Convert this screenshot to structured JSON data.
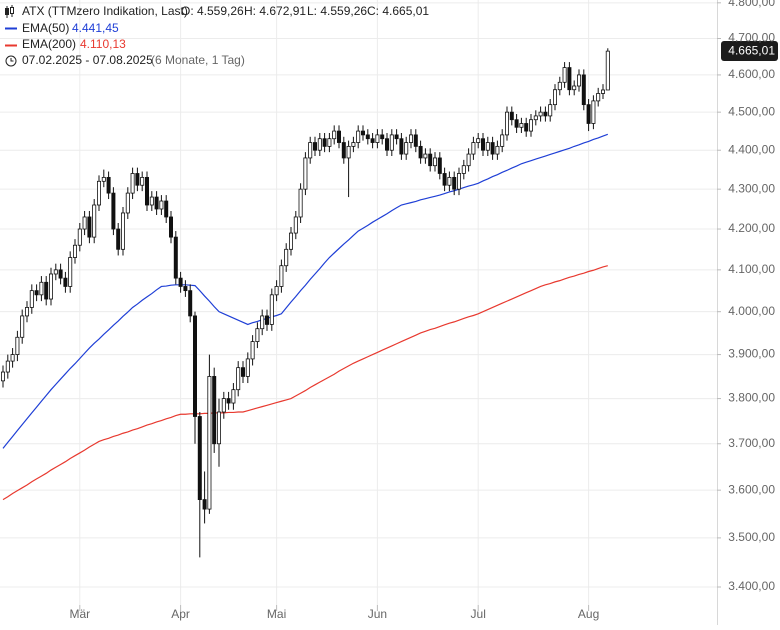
{
  "header": {
    "instrument": "ATX (TTMzero Indikation, Last)",
    "open": "O: 4.559,26",
    "high": "H: 4.672,91",
    "low": "L: 4.559,26",
    "close": "C: 4.665,01",
    "range": "07.02.2025 - 07.08.2025",
    "period": "(6 Monate, 1 Tag)"
  },
  "chart_data": {
    "type": "candlestick",
    "log_scale": true,
    "grid": true,
    "last_price_label": "4.665,01",
    "ylim": [
      3374,
      4808
    ],
    "yticks": [
      {
        "value": 4800,
        "label": "4.800,00"
      },
      {
        "value": 4700,
        "label": "4.700,00"
      },
      {
        "value": 4600,
        "label": "4.600,00"
      },
      {
        "value": 4500,
        "label": "4.500,00"
      },
      {
        "value": 4400,
        "label": "4.400,00"
      },
      {
        "value": 4300,
        "label": "4.300,00"
      },
      {
        "value": 4200,
        "label": "4.200,00"
      },
      {
        "value": 4100,
        "label": "4.100,00"
      },
      {
        "value": 4000,
        "label": "4.000,00"
      },
      {
        "value": 3900,
        "label": "3.900,00"
      },
      {
        "value": 3800,
        "label": "3.800,00"
      },
      {
        "value": 3700,
        "label": "3.700,00"
      },
      {
        "value": 3600,
        "label": "3.600,00"
      },
      {
        "value": 3500,
        "label": "3.500,00"
      },
      {
        "value": 3400,
        "label": "3.400,00"
      }
    ],
    "xticks": [
      {
        "value": 16,
        "label": "Mär"
      },
      {
        "value": 37,
        "label": "Apr"
      },
      {
        "value": 57,
        "label": "Mai"
      },
      {
        "value": 78,
        "label": "Jun"
      },
      {
        "value": 99,
        "label": "Jul"
      },
      {
        "value": 122,
        "label": "Aug"
      }
    ],
    "open": [
      3840,
      3860,
      3885,
      3900,
      3940,
      3990,
      4010,
      4050,
      4040,
      4070,
      4030,
      4090,
      4100,
      4080,
      4060,
      4130,
      4160,
      4200,
      4230,
      4180,
      4260,
      4320,
      4330,
      4290,
      4200,
      4150,
      4240,
      4290,
      4340,
      4310,
      4330,
      4260,
      4280,
      4250,
      4270,
      4230,
      4180,
      4080,
      4060,
      4050,
      3990,
      3760,
      3580,
      3560,
      3850,
      3700,
      3770,
      3800,
      3790,
      3820,
      3870,
      3850,
      3890,
      3930,
      3960,
      3990,
      3970,
      4040,
      4060,
      4110,
      4150,
      4190,
      4230,
      4300,
      4380,
      4420,
      4400,
      4430,
      4410,
      4430,
      4450,
      4420,
      4380,
      4410,
      4420,
      4450,
      4440,
      4430,
      4420,
      4440,
      4430,
      4400,
      4440,
      4430,
      4390,
      4420,
      4440,
      4410,
      4380,
      4390,
      4360,
      4380,
      4340,
      4310,
      4330,
      4300,
      4340,
      4360,
      4390,
      4420,
      4430,
      4400,
      4420,
      4390,
      4410,
      4440,
      4500,
      4480,
      4460,
      4470,
      4450,
      4480,
      4490,
      4500,
      4490,
      4520,
      4560,
      4580,
      4620,
      4560,
      4570,
      4600,
      4520,
      4470,
      4530,
      4550,
      4559.26
    ],
    "high": [
      3875,
      3900,
      3915,
      3955,
      4005,
      4025,
      4065,
      4065,
      4085,
      4085,
      4105,
      4115,
      4115,
      4095,
      4145,
      4175,
      4215,
      4245,
      4245,
      4275,
      4335,
      4350,
      4345,
      4305,
      4215,
      4255,
      4305,
      4355,
      4355,
      4345,
      4345,
      4295,
      4295,
      4285,
      4285,
      4245,
      4195,
      4095,
      4075,
      4065,
      4000,
      3770,
      3640,
      3900,
      3870,
      3800,
      3815,
      3815,
      3835,
      3885,
      3885,
      3905,
      3945,
      3975,
      4005,
      4005,
      4055,
      4075,
      4125,
      4165,
      4205,
      4245,
      4315,
      4395,
      4435,
      4435,
      4445,
      4445,
      4445,
      4465,
      4465,
      4435,
      4425,
      4435,
      4465,
      4465,
      4455,
      4445,
      4455,
      4455,
      4445,
      4455,
      4455,
      4445,
      4435,
      4455,
      4455,
      4425,
      4405,
      4405,
      4395,
      4395,
      4355,
      4345,
      4345,
      4355,
      4375,
      4405,
      4435,
      4445,
      4445,
      4435,
      4435,
      4425,
      4455,
      4515,
      4515,
      4495,
      4485,
      4485,
      4495,
      4505,
      4515,
      4515,
      4535,
      4575,
      4595,
      4635,
      4635,
      4585,
      4615,
      4615,
      4535,
      4545,
      4565,
      4575,
      4672.91
    ],
    "low": [
      3825,
      3845,
      3870,
      3885,
      3925,
      3975,
      3995,
      4025,
      4025,
      4015,
      4015,
      4075,
      4065,
      4045,
      4045,
      4115,
      4145,
      4185,
      4165,
      4165,
      4245,
      4305,
      4275,
      4185,
      4135,
      4135,
      4225,
      4275,
      4295,
      4295,
      4245,
      4245,
      4235,
      4235,
      4215,
      4165,
      4065,
      4045,
      4035,
      3975,
      3700,
      3460,
      3530,
      3550,
      3680,
      3650,
      3755,
      3775,
      3775,
      3805,
      3835,
      3835,
      3875,
      3915,
      3945,
      3955,
      3955,
      4025,
      4045,
      4095,
      4135,
      4175,
      4215,
      4285,
      4365,
      4385,
      4385,
      4395,
      4395,
      4415,
      4405,
      4365,
      4280,
      4395,
      4405,
      4425,
      4415,
      4405,
      4405,
      4415,
      4385,
      4385,
      4415,
      4375,
      4375,
      4405,
      4395,
      4365,
      4365,
      4345,
      4345,
      4325,
      4295,
      4295,
      4285,
      4285,
      4325,
      4345,
      4375,
      4405,
      4385,
      4385,
      4375,
      4375,
      4395,
      4425,
      4465,
      4445,
      4445,
      4435,
      4435,
      4465,
      4475,
      4475,
      4475,
      4505,
      4545,
      4565,
      4545,
      4545,
      4555,
      4505,
      4450,
      4455,
      4515,
      4535,
      4559.26
    ],
    "close": [
      3860,
      3885,
      3900,
      3940,
      3990,
      4010,
      4050,
      4040,
      4070,
      4030,
      4090,
      4100,
      4080,
      4060,
      4130,
      4160,
      4200,
      4230,
      4180,
      4260,
      4320,
      4330,
      4290,
      4200,
      4150,
      4240,
      4290,
      4340,
      4310,
      4330,
      4260,
      4280,
      4250,
      4270,
      4230,
      4180,
      4080,
      4060,
      4050,
      3990,
      3760,
      3580,
      3560,
      3850,
      3700,
      3770,
      3800,
      3790,
      3820,
      3870,
      3850,
      3890,
      3930,
      3960,
      3990,
      3970,
      4040,
      4060,
      4110,
      4150,
      4190,
      4230,
      4300,
      4380,
      4420,
      4400,
      4430,
      4410,
      4430,
      4450,
      4420,
      4380,
      4410,
      4420,
      4450,
      4440,
      4430,
      4420,
      4440,
      4430,
      4400,
      4440,
      4430,
      4390,
      4420,
      4440,
      4410,
      4380,
      4390,
      4360,
      4380,
      4340,
      4310,
      4330,
      4300,
      4340,
      4360,
      4390,
      4420,
      4430,
      4400,
      4420,
      4390,
      4410,
      4440,
      4500,
      4480,
      4460,
      4470,
      4450,
      4480,
      4490,
      4500,
      4490,
      4520,
      4560,
      4580,
      4620,
      4560,
      4570,
      4600,
      4520,
      4470,
      4530,
      4550,
      4559.26,
      4665.01
    ],
    "series": [
      {
        "name": "EMA(50)",
        "color": "#1f3fd6",
        "value_label": "4.441,45",
        "values": [
          3690,
          3703,
          3716,
          3729,
          3742,
          3755,
          3768,
          3781,
          3794,
          3807,
          3820,
          3832,
          3844,
          3856,
          3868,
          3879,
          3891,
          3903,
          3915,
          3926,
          3936,
          3947,
          3957,
          3968,
          3978,
          3989,
          3999,
          4010,
          4018,
          4027,
          4035,
          4043,
          4052,
          4060,
          4061,
          4063,
          4064,
          4064,
          4064,
          4063,
          4062,
          4050,
          4037,
          4025,
          4012,
          4000,
          3995,
          3990,
          3985,
          3980,
          3975,
          3970,
          3974,
          3977,
          3981,
          3984,
          3988,
          3991,
          3995,
          4009,
          4023,
          4036,
          4050,
          4063,
          4077,
          4090,
          4103,
          4117,
          4130,
          4141,
          4152,
          4163,
          4173,
          4184,
          4195,
          4202,
          4209,
          4217,
          4224,
          4231,
          4238,
          4246,
          4253,
          4260,
          4263,
          4266,
          4269,
          4273,
          4276,
          4279,
          4282,
          4285,
          4289,
          4293,
          4296,
          4300,
          4304,
          4308,
          4311,
          4315,
          4321,
          4326,
          4332,
          4337,
          4343,
          4348,
          4354,
          4359,
          4365,
          4369,
          4373,
          4377,
          4381,
          4385,
          4389,
          4393,
          4397,
          4401,
          4405,
          4410,
          4414,
          4419,
          4423,
          4428,
          4432,
          4437,
          4441.45
        ]
      },
      {
        "name": "EMA(200)",
        "color": "#e8392f",
        "value_label": "4.110,13",
        "values": [
          3580,
          3586,
          3593,
          3599,
          3605,
          3611,
          3618,
          3624,
          3630,
          3636,
          3643,
          3649,
          3655,
          3661,
          3668,
          3674,
          3680,
          3686,
          3693,
          3699,
          3705,
          3709,
          3712,
          3716,
          3719,
          3723,
          3726,
          3730,
          3733,
          3737,
          3741,
          3744,
          3748,
          3751,
          3755,
          3758,
          3762,
          3765,
          3765,
          3766,
          3766,
          3766,
          3767,
          3767,
          3768,
          3768,
          3768,
          3769,
          3769,
          3770,
          3770,
          3773,
          3776,
          3779,
          3782,
          3785,
          3788,
          3791,
          3794,
          3797,
          3800,
          3806,
          3812,
          3818,
          3825,
          3831,
          3837,
          3843,
          3849,
          3855,
          3862,
          3868,
          3874,
          3880,
          3885,
          3890,
          3895,
          3900,
          3905,
          3910,
          3915,
          3920,
          3925,
          3930,
          3935,
          3940,
          3945,
          3950,
          3954,
          3958,
          3961,
          3965,
          3969,
          3973,
          3976,
          3980,
          3984,
          3988,
          3991,
          3995,
          4000,
          4005,
          4010,
          4015,
          4020,
          4025,
          4030,
          4035,
          4040,
          4045,
          4050,
          4055,
          4060,
          4064,
          4067,
          4071,
          4074,
          4078,
          4082,
          4085,
          4089,
          4092,
          4096,
          4099,
          4103,
          4107,
          4110.13
        ]
      }
    ]
  }
}
